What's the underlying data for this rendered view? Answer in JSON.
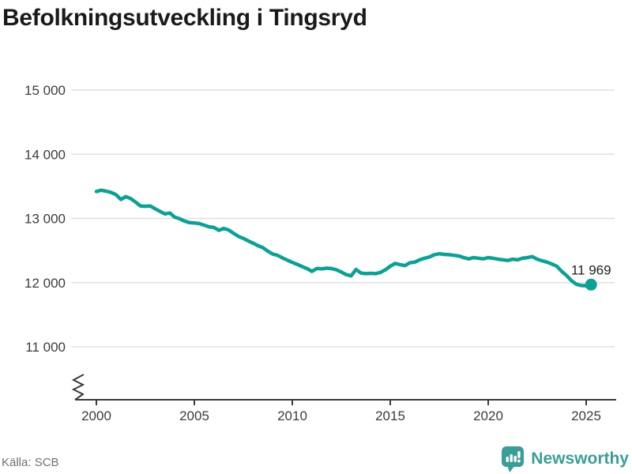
{
  "header": {
    "title": "Befolkningsutveckling i Tingsryd"
  },
  "footer": {
    "source": "Källa: SCB",
    "brand": "Newsworthy"
  },
  "colors": {
    "line": "#0da094",
    "brand_teal": "#3b9e96",
    "grid": "#e0e0e0",
    "axis": "#3a3a3a",
    "text_dark": "#1a1a1a",
    "text_muted": "#6e7179"
  },
  "chart_data": {
    "type": "line",
    "title": "Befolkningsutveckling i Tingsryd",
    "xlabel": "",
    "ylabel": "",
    "grid": "horizontal-only",
    "legend": "none",
    "axis_break_bottom_left": true,
    "ylim": [
      11000,
      15000
    ],
    "xlim": [
      2000,
      2025.25
    ],
    "yticks": [
      {
        "value": 15000,
        "label": "15 000"
      },
      {
        "value": 14000,
        "label": "14 000"
      },
      {
        "value": 13000,
        "label": "13 000"
      },
      {
        "value": 12000,
        "label": "12 000"
      },
      {
        "value": 11000,
        "label": "11 000"
      }
    ],
    "xticks": [
      {
        "value": 2000,
        "label": "2000"
      },
      {
        "value": 2005,
        "label": "2005"
      },
      {
        "value": 2010,
        "label": "2010"
      },
      {
        "value": 2015,
        "label": "2015"
      },
      {
        "value": 2020,
        "label": "2020"
      },
      {
        "value": 2025,
        "label": "2025"
      }
    ],
    "end_label": {
      "text": "11 969",
      "value": 11969
    },
    "series": [
      {
        "name": "Befolkning",
        "color": "#0da094",
        "points": [
          [
            2000.0,
            13420
          ],
          [
            2000.25,
            13440
          ],
          [
            2000.5,
            13425
          ],
          [
            2000.75,
            13405
          ],
          [
            2001.0,
            13370
          ],
          [
            2001.25,
            13295
          ],
          [
            2001.5,
            13340
          ],
          [
            2001.75,
            13310
          ],
          [
            2002.0,
            13255
          ],
          [
            2002.25,
            13195
          ],
          [
            2002.5,
            13190
          ],
          [
            2002.75,
            13195
          ],
          [
            2003.0,
            13150
          ],
          [
            2003.25,
            13110
          ],
          [
            2003.5,
            13070
          ],
          [
            2003.75,
            13085
          ],
          [
            2004.0,
            13020
          ],
          [
            2004.25,
            12995
          ],
          [
            2004.5,
            12960
          ],
          [
            2004.75,
            12935
          ],
          [
            2005.0,
            12930
          ],
          [
            2005.25,
            12920
          ],
          [
            2005.5,
            12895
          ],
          [
            2005.75,
            12870
          ],
          [
            2006.0,
            12860
          ],
          [
            2006.25,
            12815
          ],
          [
            2006.5,
            12845
          ],
          [
            2006.75,
            12820
          ],
          [
            2007.0,
            12770
          ],
          [
            2007.25,
            12720
          ],
          [
            2007.5,
            12690
          ],
          [
            2007.75,
            12650
          ],
          [
            2008.0,
            12615
          ],
          [
            2008.25,
            12575
          ],
          [
            2008.5,
            12545
          ],
          [
            2008.75,
            12490
          ],
          [
            2009.0,
            12445
          ],
          [
            2009.25,
            12425
          ],
          [
            2009.5,
            12385
          ],
          [
            2009.75,
            12350
          ],
          [
            2010.0,
            12315
          ],
          [
            2010.25,
            12285
          ],
          [
            2010.5,
            12250
          ],
          [
            2010.75,
            12220
          ],
          [
            2011.0,
            12175
          ],
          [
            2011.25,
            12220
          ],
          [
            2011.5,
            12215
          ],
          [
            2011.75,
            12225
          ],
          [
            2012.0,
            12220
          ],
          [
            2012.25,
            12200
          ],
          [
            2012.5,
            12165
          ],
          [
            2012.75,
            12125
          ],
          [
            2013.0,
            12105
          ],
          [
            2013.25,
            12205
          ],
          [
            2013.5,
            12150
          ],
          [
            2013.75,
            12140
          ],
          [
            2014.0,
            12145
          ],
          [
            2014.25,
            12140
          ],
          [
            2014.5,
            12160
          ],
          [
            2014.75,
            12200
          ],
          [
            2015.0,
            12255
          ],
          [
            2015.25,
            12300
          ],
          [
            2015.5,
            12280
          ],
          [
            2015.75,
            12265
          ],
          [
            2016.0,
            12310
          ],
          [
            2016.25,
            12320
          ],
          [
            2016.5,
            12355
          ],
          [
            2016.75,
            12380
          ],
          [
            2017.0,
            12400
          ],
          [
            2017.25,
            12435
          ],
          [
            2017.5,
            12450
          ],
          [
            2017.75,
            12440
          ],
          [
            2018.0,
            12435
          ],
          [
            2018.25,
            12425
          ],
          [
            2018.5,
            12415
          ],
          [
            2018.75,
            12390
          ],
          [
            2019.0,
            12370
          ],
          [
            2019.25,
            12390
          ],
          [
            2019.5,
            12380
          ],
          [
            2019.75,
            12370
          ],
          [
            2020.0,
            12390
          ],
          [
            2020.25,
            12380
          ],
          [
            2020.5,
            12365
          ],
          [
            2020.75,
            12355
          ],
          [
            2021.0,
            12345
          ],
          [
            2021.25,
            12365
          ],
          [
            2021.5,
            12355
          ],
          [
            2021.75,
            12380
          ],
          [
            2022.0,
            12390
          ],
          [
            2022.25,
            12405
          ],
          [
            2022.5,
            12365
          ],
          [
            2022.75,
            12340
          ],
          [
            2023.0,
            12320
          ],
          [
            2023.25,
            12290
          ],
          [
            2023.5,
            12255
          ],
          [
            2023.75,
            12175
          ],
          [
            2024.0,
            12110
          ],
          [
            2024.25,
            12030
          ],
          [
            2024.5,
            11975
          ],
          [
            2024.75,
            11955
          ],
          [
            2025.0,
            11950
          ],
          [
            2025.25,
            11969
          ]
        ]
      }
    ]
  }
}
